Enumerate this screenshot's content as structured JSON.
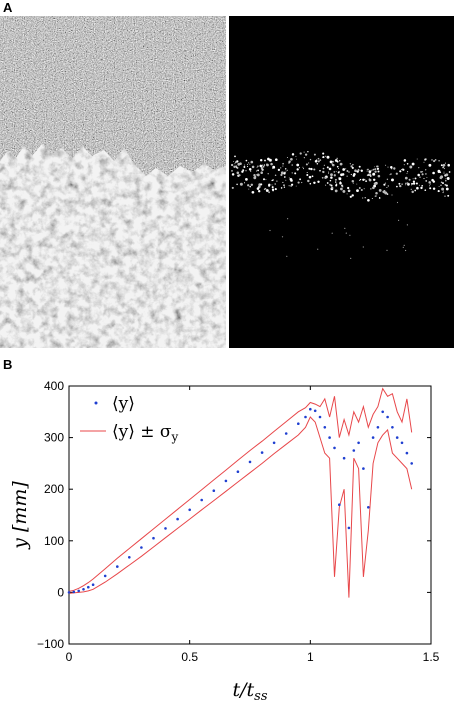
{
  "panels": {
    "a": "A",
    "b": "B"
  },
  "images": {
    "left_description": "grayscale speckle image, upper region fine noise, lower region bright granular mass",
    "right_description": "black background with sparse bright speckles along a horizontal band"
  },
  "chart_data": {
    "type": "line",
    "xlabel": "t/t_ss",
    "ylabel": "y [mm]",
    "xlim": [
      0,
      1.5
    ],
    "ylim": [
      -100,
      400
    ],
    "xticks": [
      "0",
      "0.5",
      "1",
      "1.5"
    ],
    "yticks": [
      "−100",
      "0",
      "100",
      "200",
      "300",
      "400"
    ],
    "legend_position": "top-left",
    "colors": {
      "mean": "#1f3fd0",
      "band": "#e8474a"
    },
    "series": [
      {
        "name": "⟨y⟩",
        "style": "dots",
        "x": [
          0,
          0.02,
          0.04,
          0.06,
          0.08,
          0.1,
          0.15,
          0.2,
          0.25,
          0.3,
          0.35,
          0.4,
          0.45,
          0.5,
          0.55,
          0.6,
          0.65,
          0.7,
          0.75,
          0.8,
          0.85,
          0.9,
          0.95,
          0.98,
          1.0,
          1.02,
          1.04,
          1.06,
          1.08,
          1.1,
          1.12,
          1.14,
          1.16,
          1.18,
          1.2,
          1.22,
          1.24,
          1.26,
          1.28,
          1.3,
          1.32,
          1.34,
          1.36,
          1.38,
          1.4,
          1.42
        ],
        "y": [
          0,
          1,
          3,
          6,
          10,
          15,
          32,
          50,
          68,
          87,
          105,
          124,
          142,
          160,
          179,
          197,
          216,
          234,
          253,
          271,
          290,
          308,
          327,
          340,
          355,
          352,
          340,
          320,
          300,
          280,
          170,
          260,
          125,
          275,
          290,
          240,
          165,
          300,
          320,
          350,
          340,
          320,
          300,
          290,
          270,
          250
        ]
      },
      {
        "name": "⟨y⟩ ± σ_y (upper)",
        "style": "line",
        "x": [
          0,
          0.02,
          0.04,
          0.06,
          0.08,
          0.1,
          0.15,
          0.2,
          0.25,
          0.3,
          0.35,
          0.4,
          0.45,
          0.5,
          0.55,
          0.6,
          0.65,
          0.7,
          0.75,
          0.8,
          0.85,
          0.9,
          0.95,
          0.98,
          1.0,
          1.02,
          1.04,
          1.06,
          1.08,
          1.1,
          1.12,
          1.14,
          1.16,
          1.18,
          1.2,
          1.22,
          1.24,
          1.26,
          1.28,
          1.3,
          1.32,
          1.34,
          1.36,
          1.38,
          1.4,
          1.42
        ],
        "y": [
          2,
          4,
          8,
          13,
          19,
          26,
          46,
          66,
          85,
          104,
          123,
          142,
          161,
          180,
          199,
          218,
          237,
          256,
          275,
          293,
          312,
          331,
          350,
          358,
          368,
          365,
          360,
          375,
          340,
          380,
          300,
          335,
          305,
          350,
          330,
          360,
          320,
          345,
          360,
          395,
          380,
          385,
          350,
          330,
          375,
          310
        ]
      },
      {
        "name": "⟨y⟩ ± σ_y (lower)",
        "style": "line",
        "x": [
          0,
          0.02,
          0.04,
          0.06,
          0.08,
          0.1,
          0.15,
          0.2,
          0.25,
          0.3,
          0.35,
          0.4,
          0.45,
          0.5,
          0.55,
          0.6,
          0.65,
          0.7,
          0.75,
          0.8,
          0.85,
          0.9,
          0.95,
          0.98,
          1.0,
          1.02,
          1.04,
          1.06,
          1.08,
          1.1,
          1.12,
          1.14,
          1.16,
          1.18,
          1.2,
          1.22,
          1.24,
          1.26,
          1.28,
          1.3,
          1.32,
          1.34,
          1.36,
          1.38,
          1.4,
          1.42
        ],
        "y": [
          -2,
          -1,
          0,
          1,
          3,
          6,
          20,
          36,
          53,
          70,
          88,
          106,
          124,
          142,
          160,
          178,
          196,
          214,
          232,
          250,
          269,
          287,
          305,
          320,
          340,
          330,
          300,
          270,
          260,
          30,
          165,
          200,
          -10,
          260,
          240,
          30,
          120,
          250,
          290,
          305,
          315,
          270,
          260,
          250,
          240,
          200
        ]
      }
    ],
    "legend": [
      {
        "marker": "dot",
        "text_main": "⟨y⟩",
        "text_sub": ""
      },
      {
        "marker": "line",
        "text_main": "⟨y⟩ ± σ",
        "text_sub": "y"
      }
    ]
  }
}
